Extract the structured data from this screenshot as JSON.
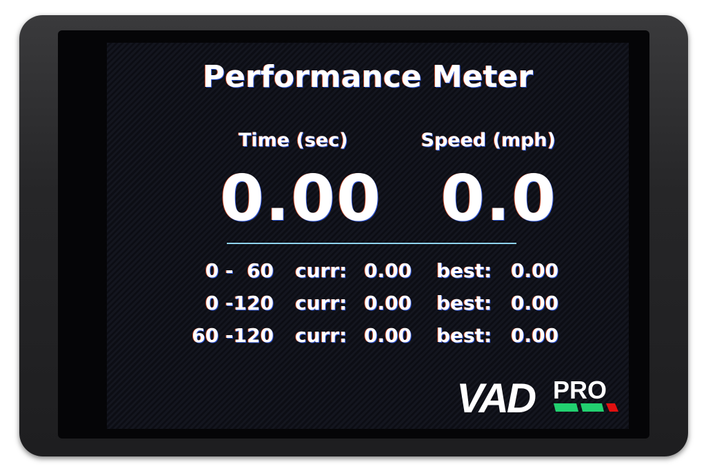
{
  "title": "Performance Meter",
  "time": {
    "label": "Time (sec)",
    "value": "0.00"
  },
  "speed": {
    "label": "Speed (mph)",
    "value": "0.0"
  },
  "rows": [
    {
      "range": "0 -  60",
      "curr_label": "curr:",
      "curr": "0.00",
      "best_label": "best:",
      "best": "0.00"
    },
    {
      "range": "0 -120",
      "curr_label": "curr:",
      "curr": "0.00",
      "best_label": "best:",
      "best": "0.00"
    },
    {
      "range": "60 -120",
      "curr_label": "curr:",
      "curr": "0.00",
      "best_label": "best:",
      "best": "0.00"
    }
  ],
  "logo": {
    "text_main": "VAD",
    "text_sub": "PRO",
    "colors": [
      "#22d070",
      "#22d070",
      "#e01010"
    ]
  },
  "colors": {
    "divider": "#8fd3f0",
    "text": "#ffffff"
  }
}
